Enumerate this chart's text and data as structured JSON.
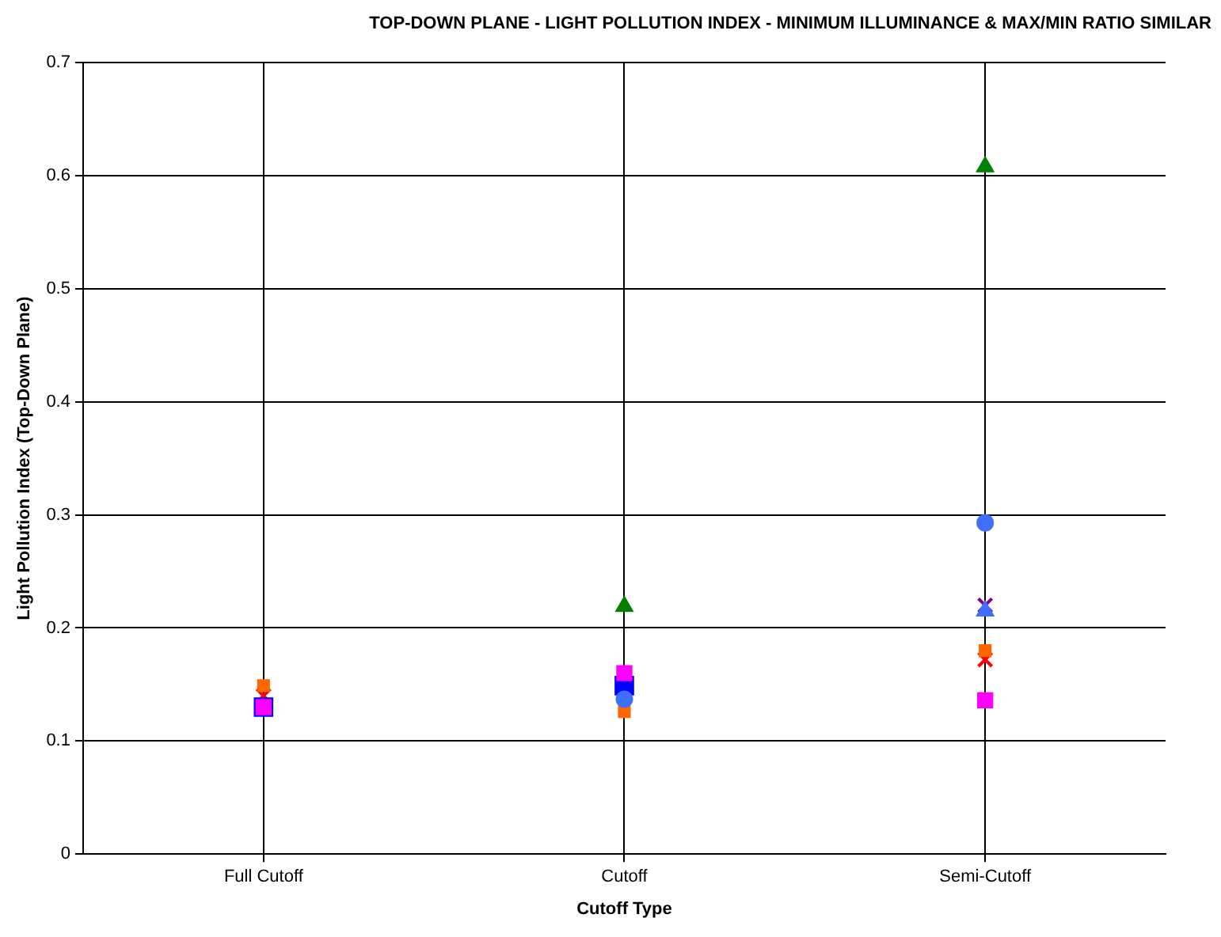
{
  "chart_data": {
    "type": "scatter",
    "title": "TOP-DOWN PLANE - LIGHT POLLUTION INDEX - MINIMUM ILLUMINANCE & MAX/MIN RATIO SIMILAR",
    "xlabel": "Cutoff Type",
    "ylabel": "Light Pollution Index (Top-Down Plane)",
    "categories": [
      "Full Cutoff",
      "Cutoff",
      "Semi-Cutoff"
    ],
    "ylim": [
      0,
      0.7
    ],
    "yticks": [
      0,
      0.1,
      0.2,
      0.3,
      0.4,
      0.5,
      0.6,
      0.7
    ],
    "grid": true,
    "legend": false,
    "series": [
      {
        "color": "#3f6fff",
        "marker": "circle",
        "values": [
          null,
          0.137,
          0.293
        ]
      },
      {
        "color": "#008000",
        "marker": "triangle",
        "values": [
          null,
          0.219,
          0.608
        ]
      },
      {
        "color": "#ff6600",
        "marker": "square",
        "values": [
          0.149,
          0.126,
          0.18
        ]
      },
      {
        "color": "#ff00ff",
        "marker": "square",
        "values": [
          0.13,
          0.16,
          0.136
        ]
      },
      {
        "color": "#0000ff",
        "marker": "square",
        "values": [
          0.13,
          0.149,
          null
        ]
      },
      {
        "color": "#3f6fff",
        "marker": "triangle",
        "values": [
          null,
          null,
          0.215
        ]
      },
      {
        "color": "#800080",
        "marker": "cross",
        "values": [
          null,
          null,
          0.22
        ]
      },
      {
        "color": "#ff0000",
        "marker": "cross",
        "values": [
          0.14,
          null,
          0.172
        ]
      }
    ]
  }
}
